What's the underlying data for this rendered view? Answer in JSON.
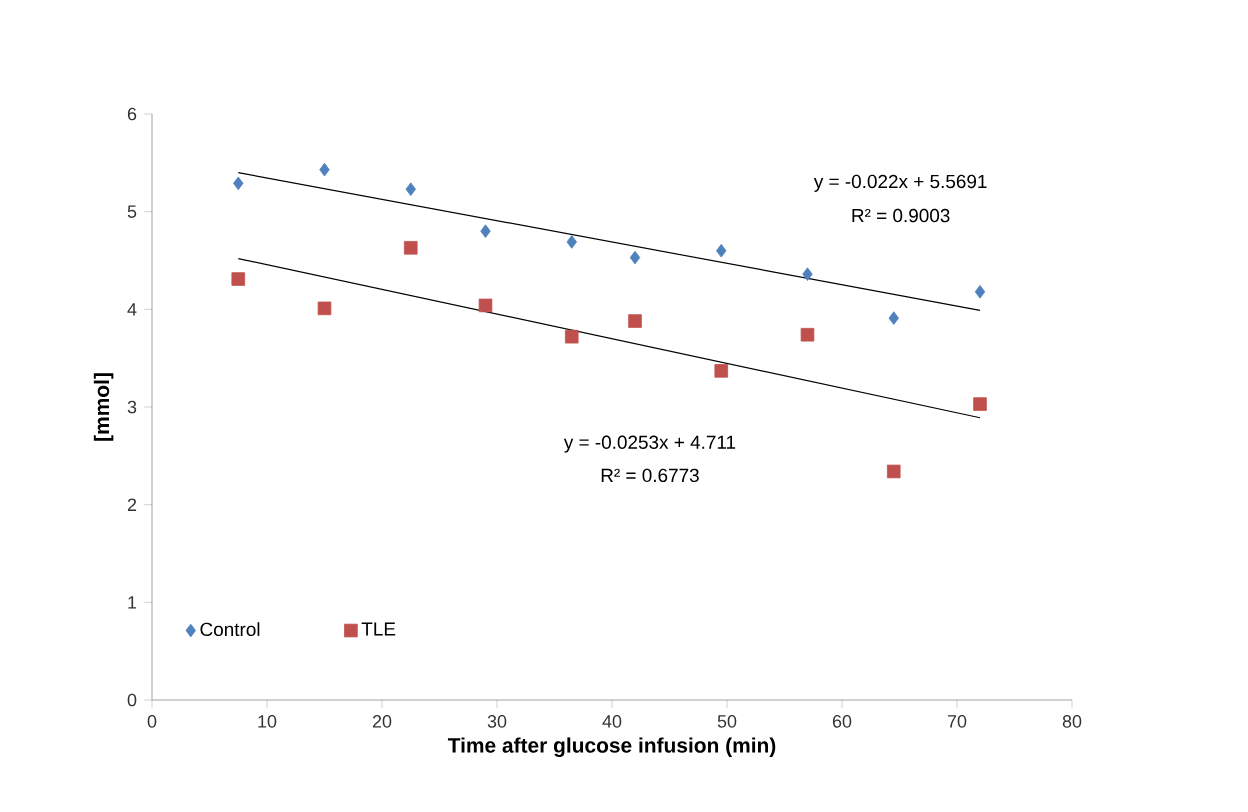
{
  "chart_data": {
    "type": "scatter",
    "xlabel": "Time after glucose infusion (min)",
    "ylabel": "[mmol]",
    "xlim": [
      0,
      80
    ],
    "xticks": [
      0,
      10,
      20,
      30,
      40,
      50,
      60,
      70,
      80
    ],
    "ylim": [
      0,
      6
    ],
    "yticks": [
      0,
      1,
      2,
      3,
      4,
      5,
      6
    ],
    "legend": "bottom left",
    "series": [
      {
        "name": "Control",
        "color": "#4f81bd",
        "marker": "diamond",
        "x": [
          7.5,
          15,
          22.5,
          29,
          36.5,
          42,
          49.5,
          57,
          64.5,
          72
        ],
        "values": [
          5.29,
          5.43,
          5.23,
          4.8,
          4.69,
          4.53,
          4.6,
          4.36,
          3.91,
          4.18
        ]
      },
      {
        "name": "TLE",
        "color": "#c0504d",
        "marker": "square",
        "x": [
          7.5,
          15,
          22.5,
          29,
          36.5,
          42,
          49.5,
          57,
          64.5,
          72
        ],
        "values": [
          4.31,
          4.01,
          4.63,
          4.04,
          3.72,
          3.88,
          3.37,
          3.74,
          2.34,
          3.03
        ]
      },
      {
        "type": "line",
        "color": "#000000",
        "marker": "none",
        "x": [
          7.5,
          72
        ],
        "values": [
          5.4,
          3.99
        ]
      },
      {
        "type": "line",
        "color": "#000000",
        "marker": "none",
        "x": [
          7.5,
          72
        ],
        "values": [
          4.52,
          2.89
        ]
      }
    ],
    "annotations": [
      "y = -0.022x + 5.5691",
      "R² = 0.9003",
      "y = -0.0253x + 4.711",
      "R² = 0.6773"
    ]
  }
}
